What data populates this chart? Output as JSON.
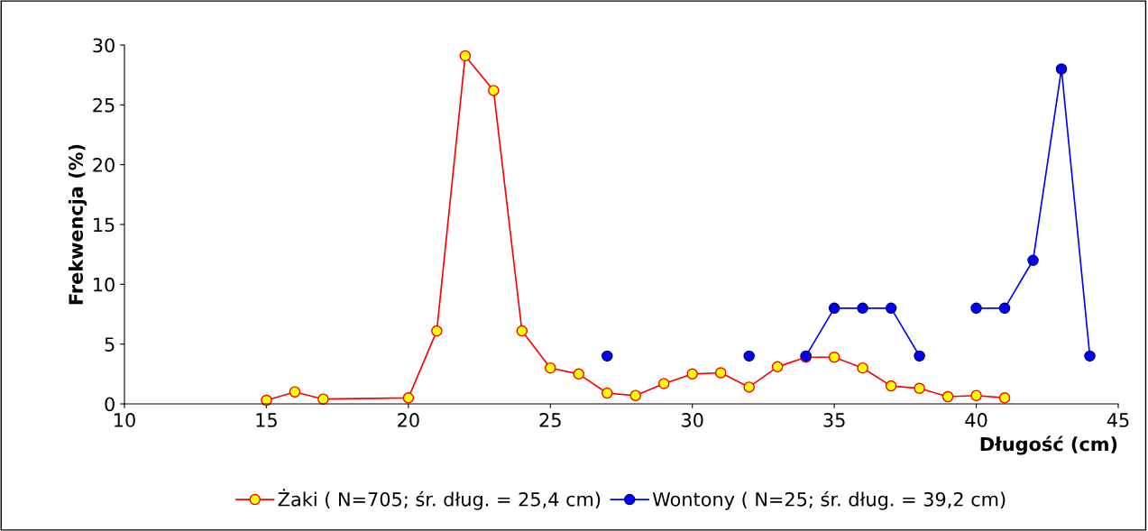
{
  "chart_data": {
    "type": "line",
    "xlabel": "Długość (cm)",
    "ylabel": "Frekwencja (%)",
    "xlim": [
      10,
      45
    ],
    "xticks": [
      10,
      15,
      20,
      25,
      30,
      35,
      40,
      45
    ],
    "ylim": [
      0,
      30
    ],
    "yticks": [
      0,
      5,
      10,
      15,
      20,
      25,
      30
    ],
    "grid": false,
    "legend": "bottom",
    "marker": "circle",
    "line_style": "solid",
    "series": [
      {
        "name": "Żaki ( N=705; śr. dług. = 25,4 cm)",
        "color": "#ff0000",
        "x": [
          15,
          16,
          17,
          20,
          21,
          22,
          23,
          24,
          25,
          26,
          27,
          28,
          29,
          30,
          31,
          32,
          33,
          34,
          35,
          36,
          37,
          38,
          39,
          40,
          41
        ],
        "values": [
          0.3,
          1.0,
          0.4,
          0.5,
          6.1,
          29.1,
          26.2,
          6.1,
          3.0,
          2.5,
          0.9,
          0.7,
          1.7,
          2.5,
          2.6,
          1.4,
          3.1,
          3.9,
          3.9,
          3.0,
          1.5,
          1.3,
          0.6,
          0.7,
          0.5
        ]
      },
      {
        "name": "Wontony ( N=25; śr. dług. = 39,2 cm)",
        "color": "#0000ff",
        "x": [
          27,
          28,
          29,
          30,
          31,
          32,
          33,
          34,
          35,
          36,
          37,
          38,
          39,
          40,
          41,
          42,
          43,
          44
        ],
        "values": [
          4,
          null,
          null,
          null,
          null,
          4,
          null,
          4,
          8,
          8,
          8,
          4,
          null,
          8,
          8,
          12,
          28,
          4
        ]
      }
    ]
  }
}
